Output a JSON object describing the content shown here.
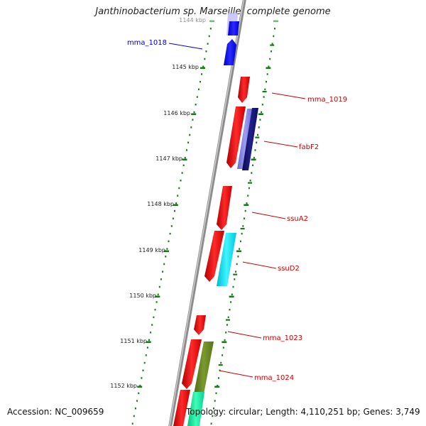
{
  "title": "Janthinobacterium sp. Marseille, complete genome",
  "footer": {
    "accession": "Accession: NC_009659",
    "summary": "Topology: circular; Length: 4,110,251 bp; Genes: 3,749"
  },
  "ruler": {
    "unit": "kbp",
    "labels": [
      "1144 kbp",
      "1145 kbp",
      "1146 kbp",
      "1147 kbp",
      "1148 kbp",
      "1149 kbp",
      "1150 kbp",
      "1151 kbp",
      "1152 kbp"
    ]
  },
  "colors": {
    "forward_gene": "#ff0000",
    "backbone": "#8c8c8c",
    "ruler_tick": "#1a7a1a",
    "label_forward": "#0000cc",
    "label_reverse": "#cc0000"
  },
  "genes": [
    {
      "name": "mma_1018",
      "strand": "forward",
      "color": "#0000ff"
    },
    {
      "name": "mma_1019",
      "strand": "reverse",
      "color": "#ff0000"
    },
    {
      "name": "fabF2",
      "strand": "reverse",
      "color": "#1a1a8c"
    },
    {
      "name": "ssuA2",
      "strand": "reverse",
      "color": "#ff0000"
    },
    {
      "name": "ssuD2",
      "strand": "reverse",
      "color": "#00e5ff"
    },
    {
      "name": "mma_1023",
      "strand": "reverse",
      "color": "#ff0000"
    },
    {
      "name": "mma_1024",
      "strand": "reverse",
      "color": "#6b8e23"
    }
  ]
}
